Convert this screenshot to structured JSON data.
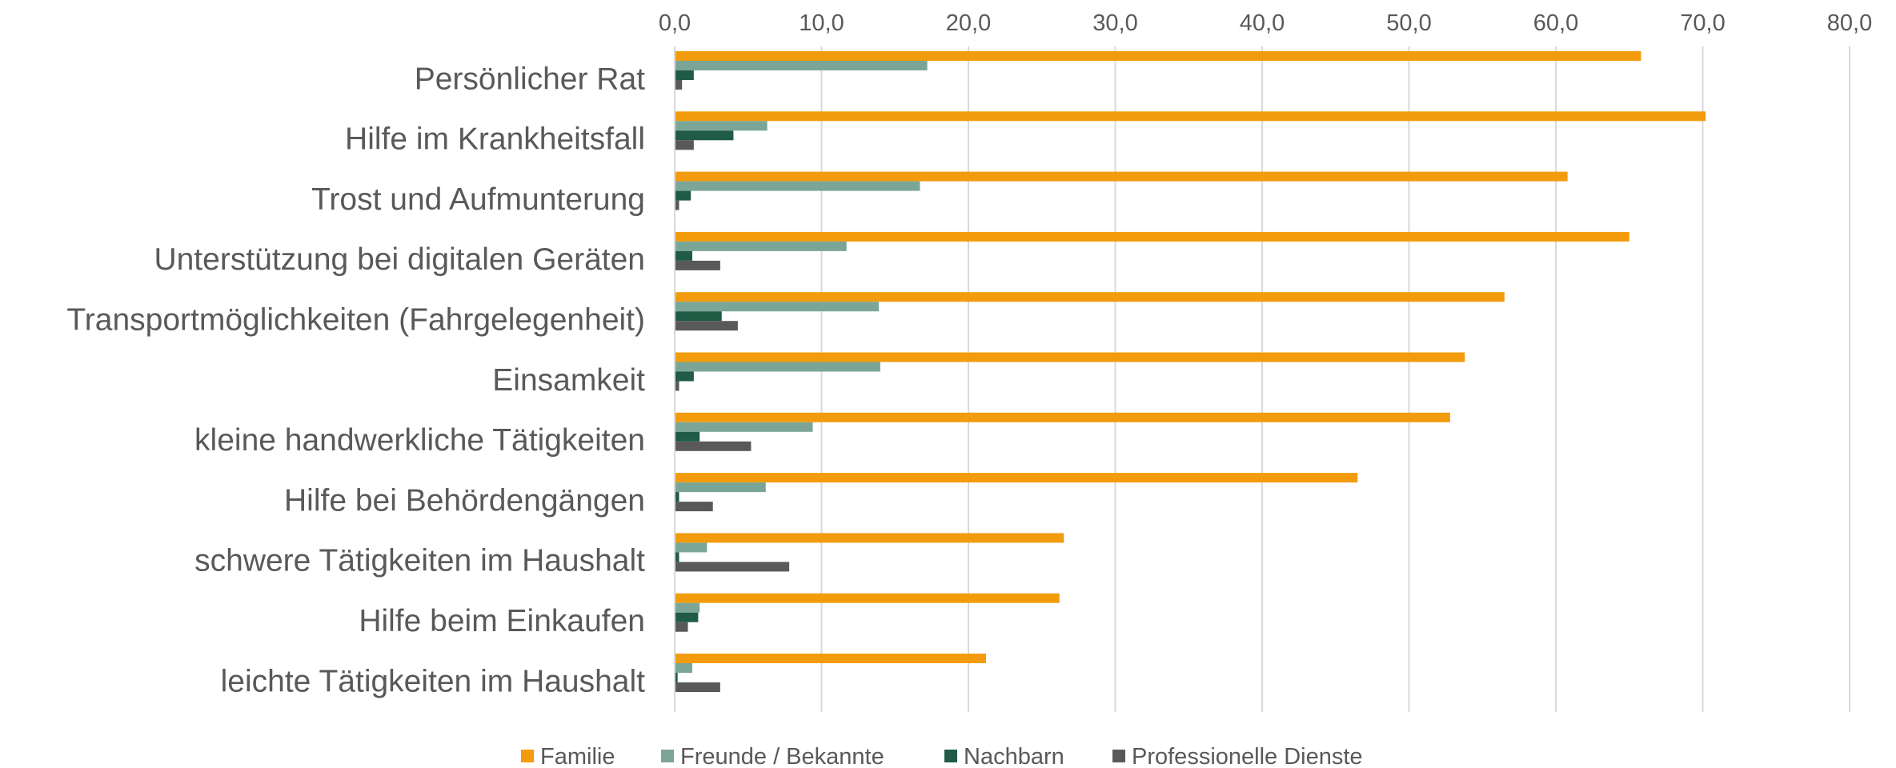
{
  "chart_data": {
    "type": "bar",
    "orientation": "horizontal",
    "title": "",
    "xlabel": "",
    "ylabel": "",
    "xlim": [
      0,
      80
    ],
    "x_ticks": [
      "0,0",
      "10,0",
      "20,0",
      "30,0",
      "40,0",
      "50,0",
      "60,0",
      "70,0",
      "80,0"
    ],
    "x_axis_position": "top",
    "grid": true,
    "legend_position": "bottom",
    "categories": [
      "Persönlicher Rat",
      "Hilfe im Krankheitsfall",
      "Trost und Aufmunterung",
      "Unterstützung bei digitalen Geräten",
      "Transportmöglichkeiten (Fahrgelegenheit)",
      "Einsamkeit",
      "kleine handwerkliche Tätigkeiten",
      "Hilfe bei Behördengängen",
      "schwere Tätigkeiten im Haushalt",
      "Hilfe beim Einkaufen",
      "leichte Tätigkeiten im Haushalt"
    ],
    "series": [
      {
        "name": "Familie",
        "color": "#F29C0D",
        "values": [
          65.8,
          70.2,
          60.8,
          65.0,
          56.5,
          53.8,
          52.8,
          46.5,
          26.5,
          26.2,
          21.2
        ]
      },
      {
        "name": "Freunde / Bekannte",
        "color": "#7BA697",
        "values": [
          17.2,
          6.3,
          16.7,
          11.7,
          13.9,
          14.0,
          9.4,
          6.2,
          2.2,
          1.7,
          1.2
        ]
      },
      {
        "name": "Nachbarn",
        "color": "#1F5B45",
        "values": [
          1.3,
          4.0,
          1.1,
          1.2,
          3.2,
          1.3,
          1.7,
          0.3,
          0.3,
          1.6,
          0.2
        ]
      },
      {
        "name": "Professionelle Dienste",
        "color": "#595959",
        "values": [
          0.5,
          1.3,
          0.3,
          3.1,
          4.3,
          0.3,
          5.2,
          2.6,
          7.8,
          0.9,
          3.1
        ]
      }
    ]
  }
}
